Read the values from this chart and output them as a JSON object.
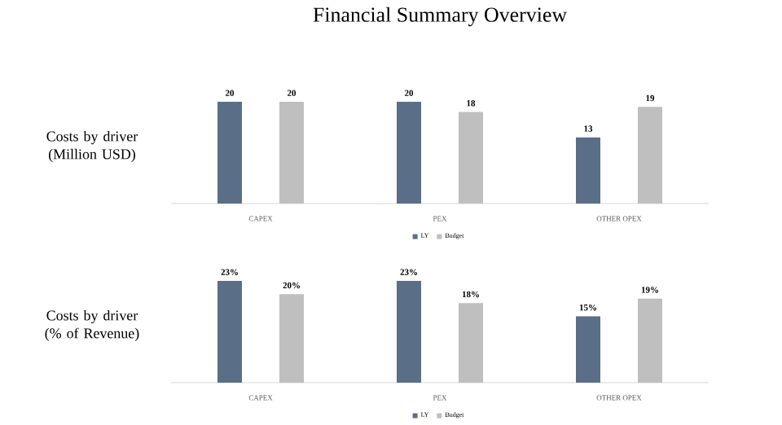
{
  "chart_data": [
    {
      "type": "bar",
      "title": "Financial Summary Overview",
      "ylabel": "Costs by driver (Million USD)",
      "categories": [
        "CAPEX",
        "PEX",
        "OTHER OPEX"
      ],
      "series": [
        {
          "name": "LY",
          "color": "#5b6e88",
          "values": [
            20,
            20,
            13
          ]
        },
        {
          "name": "Budget",
          "color": "#bfbfbf",
          "values": [
            20,
            18,
            19
          ]
        }
      ],
      "data_labels": true,
      "legend": "bottom"
    },
    {
      "type": "bar",
      "ylabel": "Costs by driver (% of Revenue)",
      "categories": [
        "CAPEX",
        "PEX",
        "OTHER OPEX"
      ],
      "series": [
        {
          "name": "LY",
          "color": "#5b6e88",
          "values": [
            23,
            23,
            15
          ],
          "value_labels": [
            "23%",
            "23%",
            "15%"
          ]
        },
        {
          "name": "Budget",
          "color": "#bfbfbf",
          "values": [
            20,
            18,
            19
          ],
          "value_labels": [
            "20%",
            "18%",
            "19%"
          ]
        }
      ],
      "legend": "bottom"
    }
  ]
}
